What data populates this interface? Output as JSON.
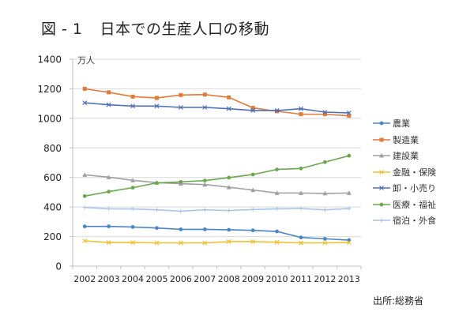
{
  "title": {
    "figure_label": "図 - 1",
    "text": "日本での生産人口の移動"
  },
  "source": "出所:総務省",
  "chart_data": {
    "type": "line",
    "title": "図 - 1　日本での生産人口の移動",
    "xlabel": "",
    "ylabel": "万人",
    "ylim": [
      0,
      1400
    ],
    "yticks": [
      0,
      200,
      400,
      600,
      800,
      1000,
      1200,
      1400
    ],
    "grid": true,
    "legend_position": "right",
    "categories": [
      "2002",
      "2003",
      "2004",
      "2005",
      "2006",
      "2007",
      "2008",
      "2009",
      "2010",
      "2011",
      "2012",
      "2013"
    ],
    "series": [
      {
        "name": "農業",
        "color": "#4a86c5",
        "marker": "dot",
        "values": [
          269,
          269,
          265,
          258,
          249,
          249,
          246,
          242,
          235,
          194,
          185,
          176
        ]
      },
      {
        "name": "製造業",
        "color": "#e07b39",
        "marker": "square",
        "values": [
          1200,
          1176,
          1147,
          1138,
          1158,
          1161,
          1142,
          1071,
          1048,
          1028,
          1028,
          1017
        ]
      },
      {
        "name": "建設業",
        "color": "#a0a0a0",
        "marker": "triangle",
        "values": [
          618,
          602,
          581,
          565,
          558,
          552,
          534,
          515,
          495,
          495,
          492,
          495
        ]
      },
      {
        "name": "金融・保険",
        "color": "#eec030",
        "marker": "x",
        "values": [
          171,
          160,
          160,
          157,
          157,
          157,
          166,
          166,
          162,
          157,
          157,
          160
        ]
      },
      {
        "name": "卸・小売り",
        "color": "#4f6fb8",
        "marker": "x",
        "values": [
          1105,
          1092,
          1083,
          1083,
          1074,
          1074,
          1065,
          1053,
          1053,
          1065,
          1042,
          1037
        ]
      },
      {
        "name": "医療・福祉",
        "color": "#6aa84f",
        "marker": "dot",
        "values": [
          474,
          504,
          531,
          563,
          570,
          579,
          599,
          620,
          654,
          661,
          704,
          747
        ]
      },
      {
        "name": "宿泊・外食",
        "color": "#a9c4e6",
        "marker": "plus",
        "values": [
          397,
          388,
          387,
          381,
          372,
          381,
          376,
          383,
          388,
          390,
          381,
          390
        ]
      }
    ]
  }
}
